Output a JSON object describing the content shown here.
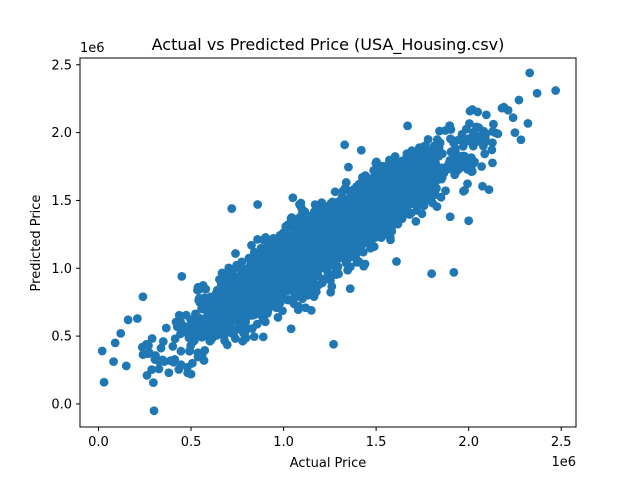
{
  "chart_data": {
    "type": "scatter",
    "title": "Actual vs Predicted Price (USA_Housing.csv)",
    "xlabel": "Actual Price",
    "ylabel": "Predicted Price",
    "x_offset_label": "1e6",
    "y_offset_label": "1e6",
    "xlim": [
      -0.1,
      2.58
    ],
    "ylim": [
      -0.17,
      2.55
    ],
    "xticks": [
      0.0,
      0.5,
      1.0,
      1.5,
      2.0,
      2.5
    ],
    "xtick_labels": [
      "0.0",
      "0.5",
      "1.0",
      "1.5",
      "2.0",
      "2.5"
    ],
    "yticks": [
      0.0,
      0.5,
      1.0,
      1.5,
      2.0,
      2.5
    ],
    "ytick_labels": [
      "0.0",
      "0.5",
      "1.0",
      "1.5",
      "2.0",
      "2.5"
    ],
    "marker_color": "#1f77b4",
    "grid": false,
    "fit_slope": 0.9,
    "fit_intercept": 0.1,
    "spread": 0.12,
    "point_count": 3500,
    "points": [
      [
        0.02,
        0.39
      ],
      [
        0.03,
        0.16
      ],
      [
        0.09,
        0.45
      ],
      [
        0.15,
        0.28
      ],
      [
        0.16,
        0.62
      ],
      [
        0.24,
        0.79
      ],
      [
        0.3,
        -0.05
      ],
      [
        0.38,
        0.23
      ],
      [
        0.5,
        0.22
      ],
      [
        0.27,
        0.43
      ],
      [
        0.21,
        0.63
      ],
      [
        0.33,
        0.31
      ],
      [
        1.27,
        0.44
      ],
      [
        1.33,
        1.91
      ],
      [
        1.8,
        0.96
      ],
      [
        1.92,
        0.97
      ],
      [
        1.61,
        1.05
      ],
      [
        1.36,
        0.85
      ],
      [
        0.57,
        0.32
      ],
      [
        0.48,
        0.27
      ],
      [
        2.33,
        2.44
      ],
      [
        2.47,
        2.31
      ],
      [
        2.37,
        2.29
      ],
      [
        2.24,
        2.11
      ],
      [
        2.25,
        2.0
      ],
      [
        2.02,
        2.17
      ],
      [
        2.18,
        2.18
      ],
      [
        1.67,
        2.05
      ],
      [
        1.42,
        1.87
      ],
      [
        1.9,
        1.38
      ],
      [
        2.07,
        1.75
      ],
      [
        2.11,
        1.58
      ],
      [
        2.0,
        1.35
      ],
      [
        1.41,
        1.15
      ],
      [
        1.05,
        1.52
      ],
      [
        0.72,
        1.44
      ],
      [
        0.86,
        1.47
      ],
      [
        0.66,
        0.65
      ],
      [
        0.71,
        0.65
      ],
      [
        0.12,
        0.52
      ],
      [
        0.45,
        0.94
      ],
      [
        0.35,
        0.46
      ],
      [
        1.08,
        0.72
      ],
      [
        1.15,
        0.69
      ],
      [
        0.89,
        0.95
      ],
      [
        1.0,
        1.0
      ],
      [
        1.2,
        1.12
      ],
      [
        1.5,
        1.45
      ],
      [
        1.7,
        1.62
      ],
      [
        0.8,
        0.78
      ]
    ]
  }
}
